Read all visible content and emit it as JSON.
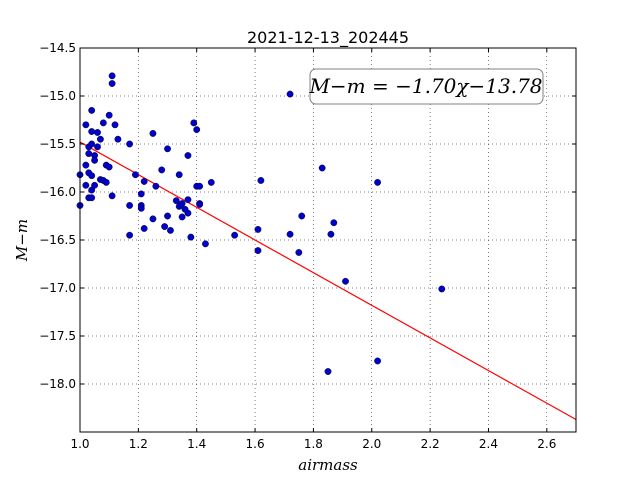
{
  "chart_data": {
    "type": "scatter",
    "title": "2021-12-13_202445",
    "xlabel": "airmass",
    "ylabel": "M−m",
    "xlim": [
      1.0,
      2.7
    ],
    "ylim": [
      -18.5,
      -14.5
    ],
    "y_inverted": true,
    "grid": true,
    "x_ticks": [
      1.0,
      1.2,
      1.4,
      1.6,
      1.8,
      2.0,
      2.2,
      2.4,
      2.6
    ],
    "x_tick_labels": [
      "1.0",
      "1.2",
      "1.4",
      "1.6",
      "1.8",
      "2.0",
      "2.2",
      "2.4",
      "2.6"
    ],
    "y_ticks": [
      -14.5,
      -15.0,
      -15.5,
      -16.0,
      -16.5,
      -17.0,
      -17.5,
      -18.0
    ],
    "y_tick_labels": [
      "−14.5",
      "−15.0",
      "−15.5",
      "−16.0",
      "−16.5",
      "−17.0",
      "−17.5",
      "−18.0"
    ],
    "annotation": "M−m = −1.70χ−13.78",
    "marker_color": "#0000cc",
    "fit_line": {
      "slope": -1.7,
      "intercept": -13.78,
      "color": "#ff0000"
    },
    "points": [
      [
        1.0,
        -15.82
      ],
      [
        1.0,
        -16.14
      ],
      [
        1.02,
        -15.3
      ],
      [
        1.02,
        -15.72
      ],
      [
        1.02,
        -15.93
      ],
      [
        1.03,
        -15.53
      ],
      [
        1.03,
        -15.8
      ],
      [
        1.03,
        -16.06
      ],
      [
        1.03,
        -15.6
      ],
      [
        1.04,
        -15.15
      ],
      [
        1.04,
        -15.37
      ],
      [
        1.04,
        -15.83
      ],
      [
        1.04,
        -15.98
      ],
      [
        1.04,
        -16.06
      ],
      [
        1.04,
        -15.5
      ],
      [
        1.05,
        -15.62
      ],
      [
        1.05,
        -15.67
      ],
      [
        1.05,
        -15.93
      ],
      [
        1.06,
        -15.38
      ],
      [
        1.06,
        -15.53
      ],
      [
        1.07,
        -15.45
      ],
      [
        1.07,
        -15.87
      ],
      [
        1.08,
        -15.28
      ],
      [
        1.08,
        -15.88
      ],
      [
        1.09,
        -15.72
      ],
      [
        1.09,
        -15.9
      ],
      [
        1.1,
        -15.2
      ],
      [
        1.1,
        -15.74
      ],
      [
        1.11,
        -14.79
      ],
      [
        1.11,
        -14.87
      ],
      [
        1.11,
        -16.04
      ],
      [
        1.12,
        -15.3
      ],
      [
        1.13,
        -15.45
      ],
      [
        1.17,
        -15.5
      ],
      [
        1.17,
        -16.14
      ],
      [
        1.17,
        -16.45
      ],
      [
        1.19,
        -15.82
      ],
      [
        1.21,
        -16.02
      ],
      [
        1.21,
        -16.14
      ],
      [
        1.21,
        -16.17
      ],
      [
        1.22,
        -15.89
      ],
      [
        1.22,
        -16.38
      ],
      [
        1.25,
        -15.39
      ],
      [
        1.25,
        -16.28
      ],
      [
        1.26,
        -15.94
      ],
      [
        1.28,
        -15.77
      ],
      [
        1.29,
        -16.36
      ],
      [
        1.3,
        -15.55
      ],
      [
        1.3,
        -16.25
      ],
      [
        1.31,
        -16.4
      ],
      [
        1.33,
        -16.09
      ],
      [
        1.34,
        -15.82
      ],
      [
        1.34,
        -16.15
      ],
      [
        1.35,
        -16.12
      ],
      [
        1.35,
        -16.26
      ],
      [
        1.36,
        -16.18
      ],
      [
        1.37,
        -15.62
      ],
      [
        1.37,
        -16.08
      ],
      [
        1.37,
        -16.22
      ],
      [
        1.38,
        -16.47
      ],
      [
        1.39,
        -15.28
      ],
      [
        1.4,
        -15.35
      ],
      [
        1.4,
        -15.94
      ],
      [
        1.41,
        -15.94
      ],
      [
        1.41,
        -16.12
      ],
      [
        1.41,
        -16.13
      ],
      [
        1.43,
        -16.54
      ],
      [
        1.45,
        -15.9
      ],
      [
        1.53,
        -16.45
      ],
      [
        1.61,
        -16.39
      ],
      [
        1.61,
        -16.61
      ],
      [
        1.62,
        -15.88
      ],
      [
        1.72,
        -14.98
      ],
      [
        1.72,
        -16.44
      ],
      [
        1.75,
        -16.63
      ],
      [
        1.76,
        -16.25
      ],
      [
        1.83,
        -15.75
      ],
      [
        1.85,
        -17.87
      ],
      [
        1.86,
        -16.44
      ],
      [
        1.87,
        -16.32
      ],
      [
        1.91,
        -16.93
      ],
      [
        2.02,
        -15.9
      ],
      [
        2.02,
        -17.76
      ],
      [
        2.24,
        -17.01
      ]
    ]
  }
}
